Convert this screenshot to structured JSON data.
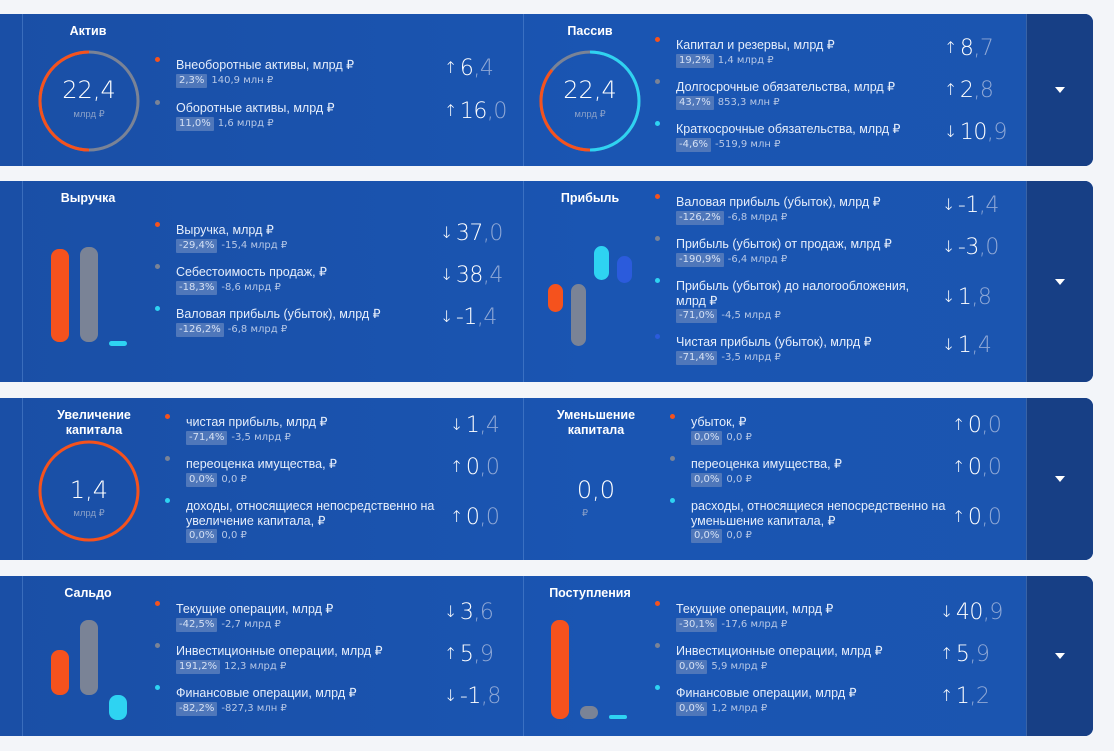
{
  "colors": {
    "orange": "#f5521d",
    "gray": "#7a8396",
    "cyan": "#2ed3f2",
    "blue": "#2b5bdc"
  },
  "cards": [
    {
      "left": {
        "title": "Актив",
        "center_value": "22,4",
        "center_unit": "млрд ₽",
        "rows": [
          {
            "label": "Внеоборотные активы, млрд ₽",
            "pct": "2,3%",
            "sub": "140,9 млн ₽",
            "arrow": "↑",
            "int": "6",
            "frac": ",4",
            "dot": "orange"
          },
          {
            "label": "Оборотные активы, млрд ₽",
            "pct": "11,0%",
            "sub": "1,6 млрд ₽",
            "arrow": "↑",
            "int": "16",
            "frac": ",0",
            "dot": "gray"
          }
        ]
      },
      "right": {
        "title": "Пассив",
        "center_value": "22,4",
        "center_unit": "млрд ₽",
        "rows": [
          {
            "label": "Капитал и резервы, млрд ₽",
            "pct": "19,2%",
            "sub": "1,4 млрд ₽",
            "arrow": "↑",
            "int": "8",
            "frac": ",7",
            "dot": "orange"
          },
          {
            "label": "Долгосрочные обязательства, млрд ₽",
            "pct": "43,7%",
            "sub": "853,3 млн ₽",
            "arrow": "↑",
            "int": "2",
            "frac": ",8",
            "dot": "gray"
          },
          {
            "label": "Краткосрочные обязательства, млрд ₽",
            "pct": "-4,6%",
            "sub": "-519,9 млн ₽",
            "arrow": "↓",
            "int": "10",
            "frac": ",9",
            "dot": "cyan"
          }
        ]
      }
    },
    {
      "left": {
        "title": "Выручка",
        "rows": [
          {
            "label": "Выручка, млрд ₽",
            "pct": "-29,4%",
            "sub": "-15,4 млрд ₽",
            "arrow": "↓",
            "int": "37",
            "frac": ",0",
            "dot": "orange"
          },
          {
            "label": "Себестоимость продаж, ₽",
            "pct": "-18,3%",
            "sub": "-8,6 млрд ₽",
            "arrow": "↓",
            "int": "38",
            "frac": ",4",
            "dot": "gray"
          },
          {
            "label": "Валовая прибыль (убыток), млрд ₽",
            "pct": "-126,2%",
            "sub": "-6,8 млрд ₽",
            "arrow": "↓",
            "int": "-1",
            "frac": ",4",
            "dot": "cyan"
          }
        ]
      },
      "right": {
        "title": "Прибыль",
        "rows": [
          {
            "label": "Валовая прибыль (убыток), млрд ₽",
            "pct": "-126,2%",
            "sub": "-6,8 млрд ₽",
            "arrow": "↓",
            "int": "-1",
            "frac": ",4",
            "dot": "orange"
          },
          {
            "label": "Прибыль (убыток) от продаж, млрд ₽",
            "pct": "-190,9%",
            "sub": "-6,4 млрд ₽",
            "arrow": "↓",
            "int": "-3",
            "frac": ",0",
            "dot": "gray"
          },
          {
            "label": "Прибыль (убыток) до налогообложения, млрд ₽",
            "pct": "-71,0%",
            "sub": "-4,5 млрд ₽",
            "arrow": "↓",
            "int": "1",
            "frac": ",8",
            "dot": "cyan"
          },
          {
            "label": "Чистая прибыль (убыток), млрд ₽",
            "pct": "-71,4%",
            "sub": "-3,5 млрд ₽",
            "arrow": "↓",
            "int": "1",
            "frac": ",4",
            "dot": "blue"
          }
        ]
      }
    },
    {
      "left": {
        "title": "Увеличение капитала",
        "center_value": "1,4",
        "center_unit": "млрд ₽",
        "rows": [
          {
            "label": "чистая прибыль, млрд ₽",
            "pct": "-71,4%",
            "sub": "-3,5 млрд ₽",
            "arrow": "↓",
            "int": "1",
            "frac": ",4",
            "dot": "orange"
          },
          {
            "label": "переоценка имущества, ₽",
            "pct": "0,0%",
            "sub": "0,0 ₽",
            "arrow": "↑",
            "int": "0",
            "frac": ",0",
            "dot": "gray"
          },
          {
            "label": "доходы, относящиеся непосредственно на увеличение капитала, ₽",
            "pct": "0,0%",
            "sub": "0,0 ₽",
            "arrow": "↑",
            "int": "0",
            "frac": ",0",
            "dot": "cyan"
          }
        ]
      },
      "right": {
        "title": "Уменьшение капитала",
        "center_value": "0,0",
        "center_unit": "₽",
        "rows": [
          {
            "label": "убыток, ₽",
            "pct": "0,0%",
            "sub": "0,0 ₽",
            "arrow": "↑",
            "int": "0",
            "frac": ",0",
            "dot": "orange"
          },
          {
            "label": "переоценка имущества, ₽",
            "pct": "0,0%",
            "sub": "0,0 ₽",
            "arrow": "↑",
            "int": "0",
            "frac": ",0",
            "dot": "gray"
          },
          {
            "label": "расходы, относящиеся непосредственно на уменьшение капитала, ₽",
            "pct": "0,0%",
            "sub": "0,0 ₽",
            "arrow": "↑",
            "int": "0",
            "frac": ",0",
            "dot": "cyan"
          }
        ]
      }
    },
    {
      "left": {
        "title": "Сальдо",
        "rows": [
          {
            "label": "Текущие операции, млрд ₽",
            "pct": "-42,5%",
            "sub": "-2,7 млрд ₽",
            "arrow": "↓",
            "int": "3",
            "frac": ",6",
            "dot": "orange"
          },
          {
            "label": "Инвестиционные операции, млрд ₽",
            "pct": "191,2%",
            "sub": "12,3 млрд ₽",
            "arrow": "↑",
            "int": "5",
            "frac": ",9",
            "dot": "gray"
          },
          {
            "label": "Финансовые операции, млрд ₽",
            "pct": "-82,2%",
            "sub": "-827,3 млн ₽",
            "arrow": "↓",
            "int": "-1",
            "frac": ",8",
            "dot": "cyan"
          }
        ]
      },
      "right": {
        "title": "Поступления",
        "rows": [
          {
            "label": "Текущие операции, млрд ₽",
            "pct": "-30,1%",
            "sub": "-17,6 млрд ₽",
            "arrow": "↓",
            "int": "40",
            "frac": ",9",
            "dot": "orange"
          },
          {
            "label": "Инвестиционные операции, млрд ₽",
            "pct": "0,0%",
            "sub": "5,9 млрд ₽",
            "arrow": "↑",
            "int": "5",
            "frac": ",9",
            "dot": "gray"
          },
          {
            "label": "Финансовые операции, млрд ₽",
            "pct": "0,0%",
            "sub": "1,2 млрд ₽",
            "arrow": "↑",
            "int": "1",
            "frac": ",2",
            "dot": "cyan"
          }
        ]
      }
    }
  ]
}
